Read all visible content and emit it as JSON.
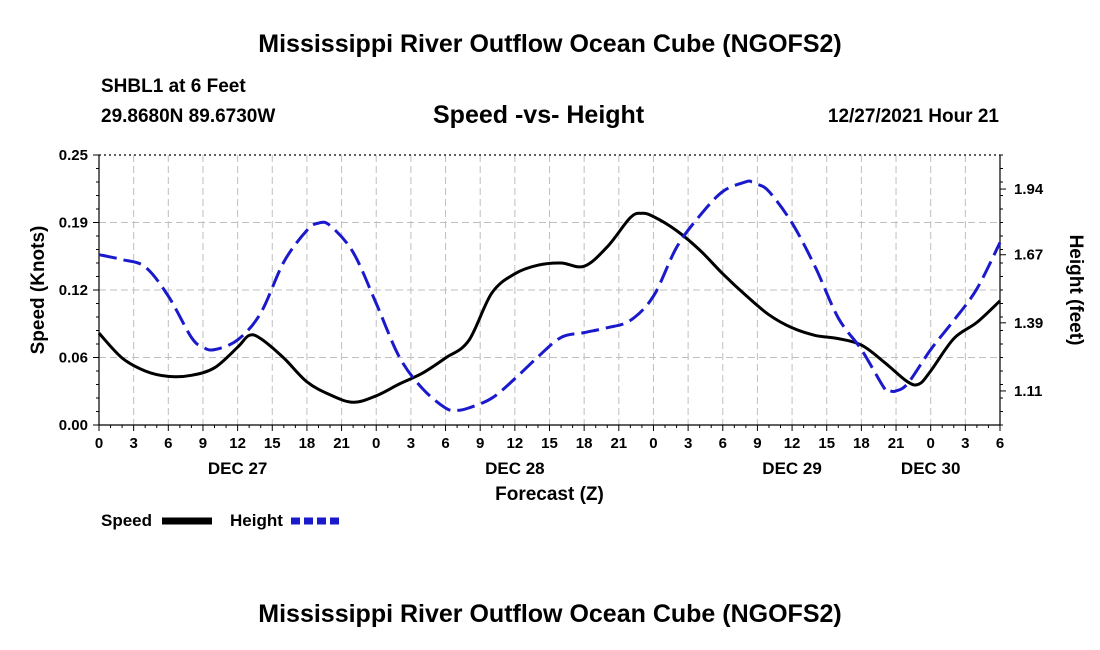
{
  "header": {
    "title": "Mississippi River Outflow Ocean Cube (NGOFS2)",
    "station": "SHBL1 at 6 Feet",
    "location": "29.8680N  89.6730W",
    "subtitle": "Speed -vs- Height",
    "datetime": "12/27/2021 Hour 21"
  },
  "footer": {
    "title": "Mississippi River Outflow Ocean Cube (NGOFS2)"
  },
  "legend": {
    "speed_label": "Speed",
    "height_label": "Height"
  },
  "chart_data": {
    "type": "line",
    "xlabel": "Forecast (Z)",
    "ylabel_left": "Speed (Knots)",
    "ylabel_right": "Height (feet)",
    "x_hours_range": [
      0,
      78
    ],
    "x_tick_labels": [
      "0",
      "3",
      "6",
      "9",
      "12",
      "15",
      "18",
      "21",
      "0",
      "3",
      "6",
      "9",
      "12",
      "15",
      "18",
      "21",
      "0",
      "3",
      "6",
      "9",
      "12",
      "15",
      "18",
      "21",
      "0",
      "3",
      "6"
    ],
    "day_labels": [
      {
        "label": "DEC 27",
        "hour": 12
      },
      {
        "label": "DEC 28",
        "hour": 36
      },
      {
        "label": "DEC 29",
        "hour": 60
      },
      {
        "label": "DEC 30",
        "hour": 72
      }
    ],
    "ylim_left": [
      0,
      0.25
    ],
    "y_ticks_left": [
      "0.00",
      "0.06",
      "0.12",
      "0.19",
      "0.25"
    ],
    "ylim_right": [
      0.97,
      2.08
    ],
    "y_ticks_right": [
      {
        "label": "1.11",
        "value": 1.11
      },
      {
        "label": "1.39",
        "value": 1.39
      },
      {
        "label": "1.67",
        "value": 1.67
      },
      {
        "label": "1.94",
        "value": 1.94
      }
    ],
    "grid": true,
    "series": [
      {
        "name": "Speed",
        "axis": "left",
        "color": "#000000",
        "dashed": false,
        "x": [
          0,
          2,
          4,
          6,
          8,
          10,
          12,
          13,
          14,
          16,
          18,
          20,
          22,
          24,
          26,
          28,
          30,
          32,
          34,
          36,
          38,
          40,
          42,
          44,
          46,
          47,
          48,
          50,
          52,
          54,
          56,
          58,
          60,
          62,
          64,
          66,
          68,
          70,
          71,
          72,
          74,
          76,
          78
        ],
        "y": [
          0.085,
          0.062,
          0.05,
          0.045,
          0.046,
          0.053,
          0.072,
          0.083,
          0.08,
          0.062,
          0.04,
          0.028,
          0.021,
          0.027,
          0.038,
          0.048,
          0.062,
          0.078,
          0.122,
          0.14,
          0.148,
          0.15,
          0.147,
          0.165,
          0.192,
          0.196,
          0.193,
          0.18,
          0.162,
          0.14,
          0.12,
          0.102,
          0.09,
          0.083,
          0.08,
          0.074,
          0.058,
          0.04,
          0.038,
          0.05,
          0.08,
          0.095,
          0.115
        ]
      },
      {
        "name": "Height",
        "axis": "right",
        "color": "#1a1acc",
        "dashed": true,
        "x": [
          0,
          2,
          4,
          6,
          8,
          9,
          10,
          12,
          14,
          16,
          18,
          19,
          20,
          22,
          24,
          26,
          28,
          30,
          31,
          32,
          34,
          36,
          38,
          40,
          42,
          44,
          46,
          48,
          50,
          52,
          54,
          56,
          56.5,
          57,
          58,
          60,
          62,
          64,
          66,
          68,
          68.5,
          69,
          70,
          72,
          74,
          76,
          78
        ],
        "y": [
          1.67,
          1.65,
          1.62,
          1.5,
          1.33,
          1.29,
          1.28,
          1.32,
          1.43,
          1.64,
          1.77,
          1.8,
          1.79,
          1.68,
          1.47,
          1.25,
          1.12,
          1.04,
          1.03,
          1.04,
          1.08,
          1.16,
          1.25,
          1.33,
          1.35,
          1.37,
          1.4,
          1.5,
          1.7,
          1.83,
          1.93,
          1.97,
          1.97,
          1.96,
          1.93,
          1.8,
          1.62,
          1.41,
          1.28,
          1.12,
          1.11,
          1.11,
          1.14,
          1.28,
          1.4,
          1.53,
          1.72
        ]
      }
    ]
  }
}
